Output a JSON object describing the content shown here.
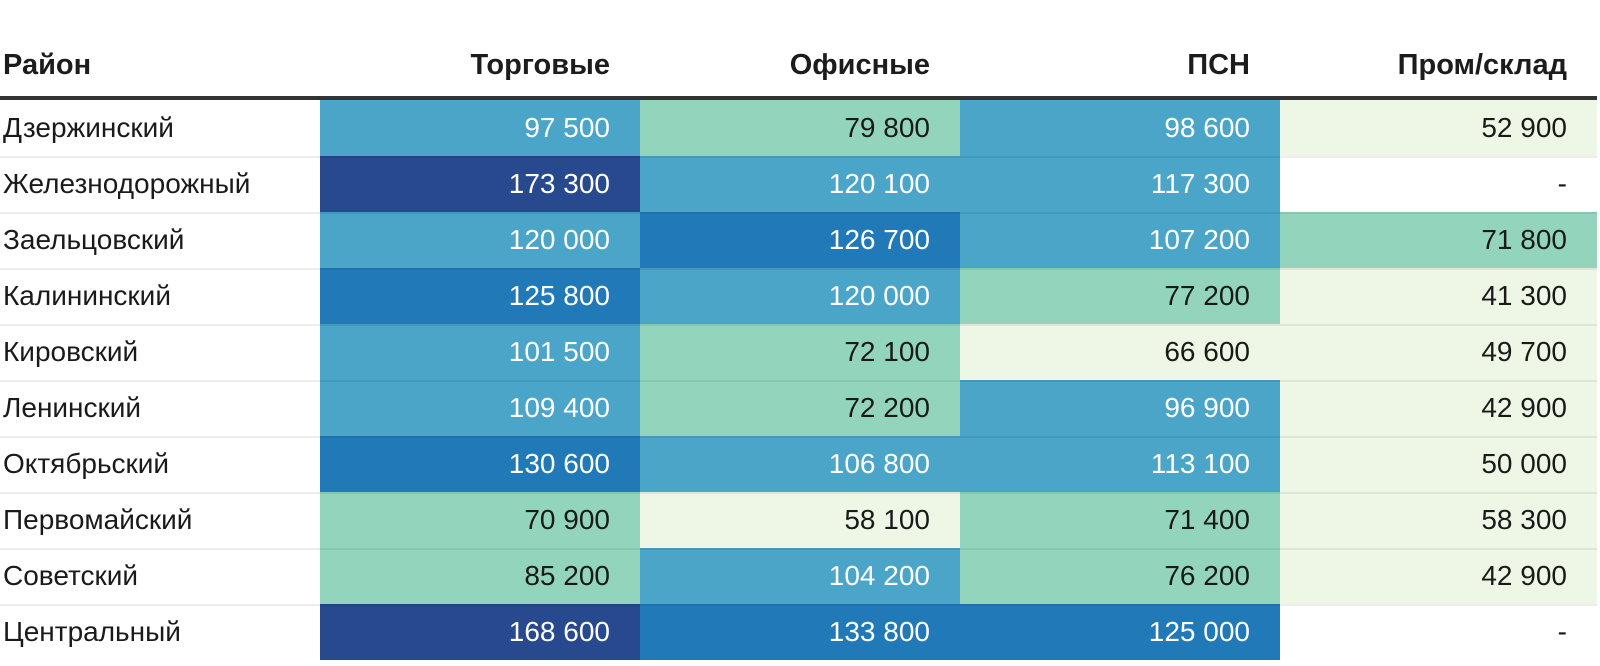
{
  "palette": {
    "deep": {
      "bg": "#28498e",
      "text": "#ffffff"
    },
    "strong": {
      "bg": "#2279b8",
      "text": "#ffffff"
    },
    "medium": {
      "bg": "#4aa5c8",
      "text": "#ffffff"
    },
    "teal": {
      "bg": "#93d4bc",
      "text": "#1a1a1a"
    },
    "pale": {
      "bg": "#eef7e6",
      "text": "#1a1a1a"
    },
    "none": {
      "bg": "#ffffff",
      "text": "#1a1a1a"
    }
  },
  "header_rule_color": "#333333",
  "chart_data": {
    "type": "table",
    "columns": [
      "Район",
      "Торговые",
      "Офисные",
      "ПСН",
      "Пром/склад"
    ],
    "rows": [
      {
        "district": "Дзержинский",
        "cells": [
          {
            "value": 97500,
            "display": "97 500",
            "tone": "medium"
          },
          {
            "value": 79800,
            "display": "79 800",
            "tone": "teal"
          },
          {
            "value": 98600,
            "display": "98 600",
            "tone": "medium"
          },
          {
            "value": 52900,
            "display": "52 900",
            "tone": "pale"
          }
        ]
      },
      {
        "district": "Железнодорожный",
        "cells": [
          {
            "value": 173300,
            "display": "173 300",
            "tone": "deep"
          },
          {
            "value": 120100,
            "display": "120 100",
            "tone": "medium"
          },
          {
            "value": 117300,
            "display": "117 300",
            "tone": "medium"
          },
          {
            "value": null,
            "display": "-",
            "tone": "none"
          }
        ]
      },
      {
        "district": "Заельцовский",
        "cells": [
          {
            "value": 120000,
            "display": "120 000",
            "tone": "medium"
          },
          {
            "value": 126700,
            "display": "126 700",
            "tone": "strong"
          },
          {
            "value": 107200,
            "display": "107 200",
            "tone": "medium"
          },
          {
            "value": 71800,
            "display": "71 800",
            "tone": "teal"
          }
        ]
      },
      {
        "district": "Калининский",
        "cells": [
          {
            "value": 125800,
            "display": "125 800",
            "tone": "strong"
          },
          {
            "value": 120000,
            "display": "120 000",
            "tone": "medium"
          },
          {
            "value": 77200,
            "display": "77 200",
            "tone": "teal"
          },
          {
            "value": 41300,
            "display": "41 300",
            "tone": "pale"
          }
        ]
      },
      {
        "district": "Кировский",
        "cells": [
          {
            "value": 101500,
            "display": "101 500",
            "tone": "medium"
          },
          {
            "value": 72100,
            "display": "72 100",
            "tone": "teal"
          },
          {
            "value": 66600,
            "display": "66 600",
            "tone": "pale"
          },
          {
            "value": 49700,
            "display": "49 700",
            "tone": "pale"
          }
        ]
      },
      {
        "district": "Ленинский",
        "cells": [
          {
            "value": 109400,
            "display": "109 400",
            "tone": "medium"
          },
          {
            "value": 72200,
            "display": "72 200",
            "tone": "teal"
          },
          {
            "value": 96900,
            "display": "96 900",
            "tone": "medium"
          },
          {
            "value": 42900,
            "display": "42 900",
            "tone": "pale"
          }
        ]
      },
      {
        "district": "Октябрьский",
        "cells": [
          {
            "value": 130600,
            "display": "130 600",
            "tone": "strong"
          },
          {
            "value": 106800,
            "display": "106 800",
            "tone": "medium"
          },
          {
            "value": 113100,
            "display": "113 100",
            "tone": "medium"
          },
          {
            "value": 50000,
            "display": "50 000",
            "tone": "pale"
          }
        ]
      },
      {
        "district": "Первомайский",
        "cells": [
          {
            "value": 70900,
            "display": "70 900",
            "tone": "teal"
          },
          {
            "value": 58100,
            "display": "58 100",
            "tone": "pale"
          },
          {
            "value": 71400,
            "display": "71 400",
            "tone": "teal"
          },
          {
            "value": 58300,
            "display": "58 300",
            "tone": "pale"
          }
        ]
      },
      {
        "district": "Советский",
        "cells": [
          {
            "value": 85200,
            "display": "85 200",
            "tone": "teal"
          },
          {
            "value": 104200,
            "display": "104 200",
            "tone": "medium"
          },
          {
            "value": 76200,
            "display": "76 200",
            "tone": "teal"
          },
          {
            "value": 42900,
            "display": "42 900",
            "tone": "pale"
          }
        ]
      },
      {
        "district": "Центральный",
        "cells": [
          {
            "value": 168600,
            "display": "168 600",
            "tone": "deep"
          },
          {
            "value": 133800,
            "display": "133 800",
            "tone": "strong"
          },
          {
            "value": 125000,
            "display": "125 000",
            "tone": "strong"
          },
          {
            "value": null,
            "display": "-",
            "tone": "none"
          }
        ]
      }
    ]
  }
}
